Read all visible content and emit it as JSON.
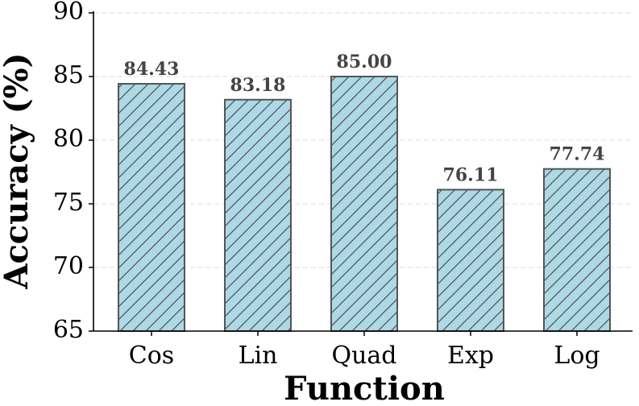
{
  "chart_data": {
    "type": "bar",
    "x_label": "Function",
    "y_label": "Accuracy (%)",
    "categories": [
      "Cos",
      "Lin",
      "Quad",
      "Exp",
      "Log"
    ],
    "values": [
      84.43,
      83.18,
      85.0,
      76.11,
      77.74
    ],
    "value_labels": [
      "84.43",
      "83.18",
      "85.00",
      "76.11",
      "77.74"
    ],
    "color": "#add8e6",
    "ylim": [
      65,
      90
    ],
    "yticks": [
      65,
      70,
      75,
      80,
      85,
      90
    ],
    "grid": true
  }
}
